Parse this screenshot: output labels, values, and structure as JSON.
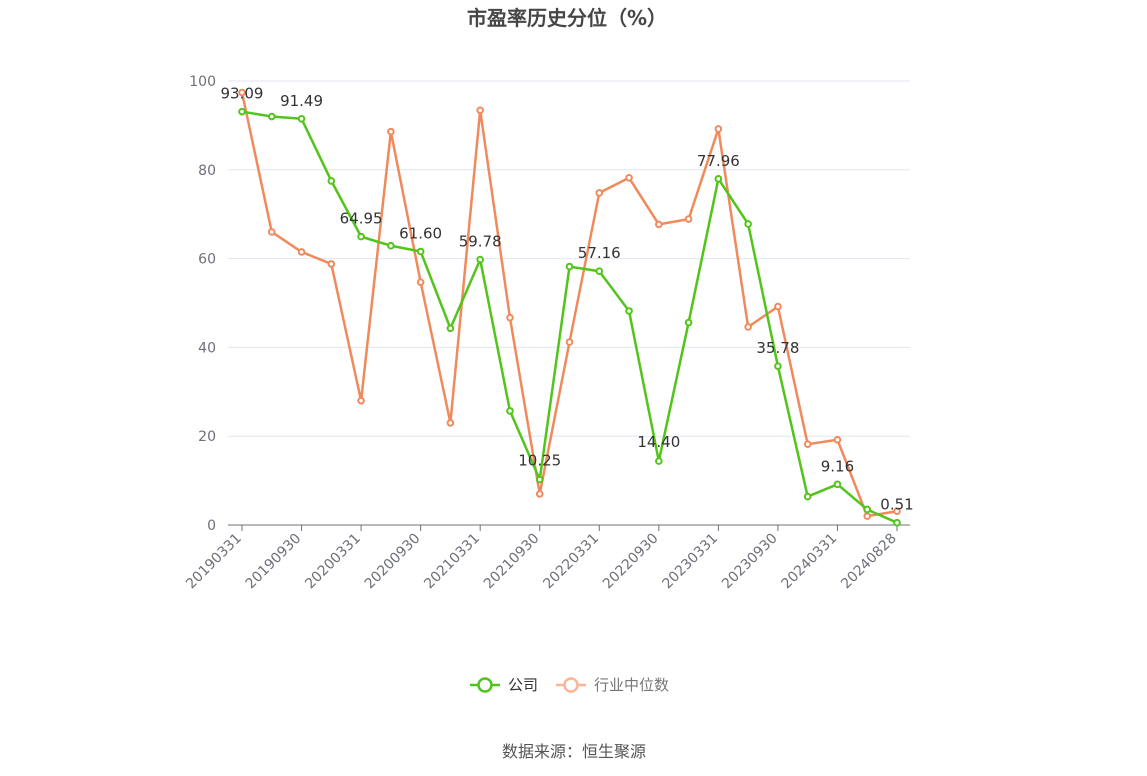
{
  "chart_data": {
    "type": "line",
    "title": "市盈率历史分位（%）",
    "xlabel": "",
    "ylabel": "",
    "ylim": [
      0,
      100
    ],
    "yticks": [
      0,
      20,
      40,
      60,
      80,
      100
    ],
    "x": [
      "20190331",
      "20190630",
      "20190930",
      "20191231",
      "20200331",
      "20200630",
      "20200930",
      "20201231",
      "20210331",
      "20210630",
      "20210930",
      "20211231",
      "20220331",
      "20220630",
      "20220930",
      "20221231",
      "20230331",
      "20230630",
      "20230930",
      "20231231",
      "20240331",
      "20240630",
      "20240828"
    ],
    "x_tick_labels": [
      "20190331",
      "20190930",
      "20200331",
      "20200930",
      "20210331",
      "20210930",
      "20220331",
      "20220930",
      "20230331",
      "20230930",
      "20240331",
      "20240828"
    ],
    "series": [
      {
        "name": "公司",
        "color": "#52c41a",
        "values": [
          93.09,
          92.0,
          91.49,
          77.5,
          64.95,
          62.9,
          61.6,
          44.3,
          59.78,
          25.7,
          10.25,
          58.2,
          57.16,
          48.2,
          14.4,
          45.6,
          77.96,
          67.8,
          35.78,
          6.4,
          9.16,
          3.5,
          0.51
        ],
        "labels": {
          "0": "93.09",
          "2": "91.49",
          "4": "64.95",
          "6": "61.60",
          "8": "59.78",
          "10": "10.25",
          "12": "57.16",
          "14": "14.40",
          "16": "77.96",
          "18": "35.78",
          "20": "9.16",
          "22": "0.51"
        }
      },
      {
        "name": "行业中位数",
        "color": "#f08a5d",
        "values": [
          97.4,
          66.0,
          61.5,
          58.8,
          28.0,
          88.6,
          54.7,
          23.0,
          93.4,
          46.7,
          7.0,
          41.2,
          74.8,
          78.2,
          67.7,
          68.9,
          89.2,
          44.6,
          49.2,
          18.2,
          19.2,
          2.0,
          3.1
        ]
      }
    ],
    "legend": {
      "placement": "bottom-center",
      "items": [
        "公司",
        "行业中位数"
      ]
    },
    "grid": true
  },
  "source": "数据来源：恒生聚源"
}
